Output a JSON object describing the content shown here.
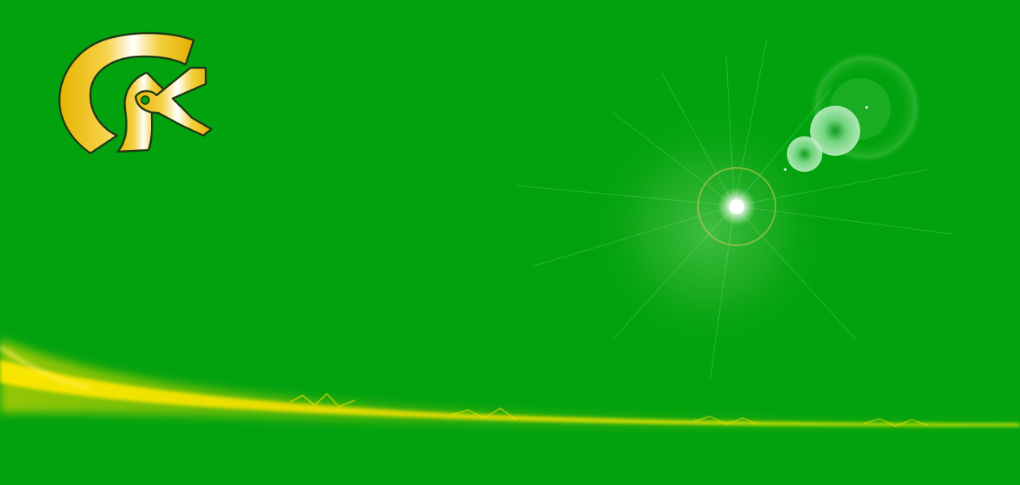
{
  "scene": {
    "logo": {
      "icon": "ck-monogram-logo-icon"
    },
    "colors": {
      "background": "#02A20E",
      "logo_gold": "#F2C200",
      "logo_highlight": "#FFFFFF",
      "logo_outline": "#1F3A14",
      "streak": "#F7E400",
      "flare_core": "#FFFFFF",
      "flare_glow": "#9FE08A"
    }
  }
}
